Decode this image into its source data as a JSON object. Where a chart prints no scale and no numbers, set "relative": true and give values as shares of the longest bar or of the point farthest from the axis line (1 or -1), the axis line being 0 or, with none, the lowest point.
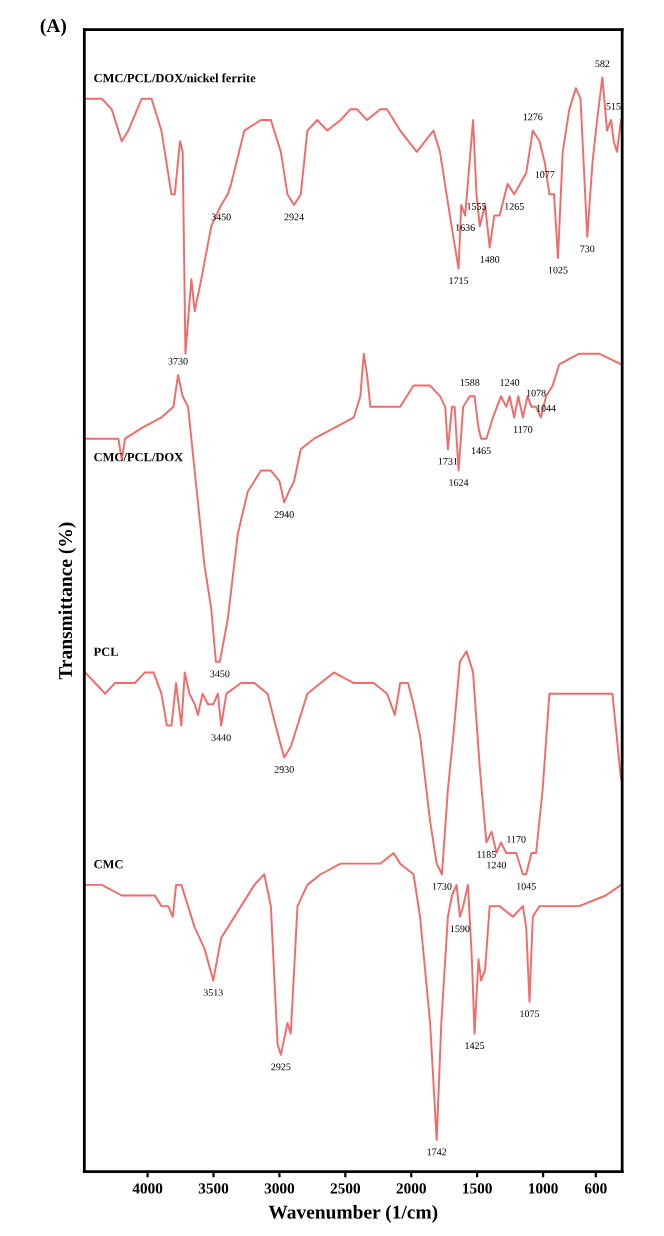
{
  "chart_data": {
    "type": "line",
    "relative": true,
    "title": "(A)",
    "xlabel": "Wavenumber (1/cm)",
    "ylabel": "Transmittance (%)",
    "xlim": [
      4480,
      400
    ],
    "xticks": [
      4000,
      3500,
      3000,
      2500,
      2000,
      1500,
      1000,
      600
    ],
    "tick_labels": "x",
    "series": [
      {
        "name": "CMC/PCL/DOX/nickel ferrite",
        "color": "#f26b6b",
        "x": [
          4473,
          4347,
          4272,
          4196,
          4146,
          4045,
          3970,
          3895,
          3819,
          3794,
          3754,
          3734,
          3713,
          3668,
          3643,
          3593,
          3517,
          3442,
          3392,
          3366,
          3266,
          3140,
          3065,
          2989,
          2939,
          2889,
          2838,
          2788,
          2713,
          2637,
          2536,
          2461,
          2411,
          2335,
          2235,
          2184,
          2084,
          1958,
          1832,
          1782,
          1732,
          1681,
          1641,
          1621,
          1591,
          1531,
          1505,
          1480,
          1440,
          1405,
          1370,
          1330,
          1269,
          1219,
          1128,
          1078,
          1027,
          987,
          952,
          917,
          887,
          851,
          801,
          751,
          716,
          665,
          625,
          590,
          550,
          515,
          484,
          464,
          439,
          409
        ],
        "values": [
          0.98,
          0.98,
          0.97,
          0.94,
          0.95,
          0.98,
          0.98,
          0.95,
          0.89,
          0.89,
          0.94,
          0.93,
          0.74,
          0.81,
          0.78,
          0.81,
          0.86,
          0.88,
          0.89,
          0.9,
          0.95,
          0.96,
          0.96,
          0.93,
          0.89,
          0.88,
          0.89,
          0.95,
          0.96,
          0.95,
          0.96,
          0.97,
          0.97,
          0.96,
          0.97,
          0.97,
          0.95,
          0.93,
          0.95,
          0.93,
          0.89,
          0.85,
          0.82,
          0.88,
          0.87,
          0.96,
          0.89,
          0.86,
          0.88,
          0.84,
          0.87,
          0.87,
          0.9,
          0.89,
          0.91,
          0.95,
          0.94,
          0.92,
          0.89,
          0.89,
          0.83,
          0.93,
          0.97,
          0.99,
          0.98,
          0.85,
          0.92,
          0.96,
          1.0,
          0.95,
          0.96,
          0.94,
          0.93,
          0.96
        ]
      },
      {
        "name": "CMC/PCL/DOX",
        "color": "#f26b6b",
        "x": [
          4473,
          4347,
          4222,
          4196,
          4171,
          4045,
          3895,
          3804,
          3769,
          3734,
          3693,
          3643,
          3568,
          3517,
          3482,
          3452,
          3392,
          3316,
          3241,
          3140,
          3065,
          2999,
          2964,
          2929,
          2889,
          2838,
          2738,
          2587,
          2436,
          2386,
          2360,
          2335,
          2310,
          2084,
          1983,
          1857,
          1782,
          1742,
          1722,
          1691,
          1671,
          1641,
          1606,
          1556,
          1520,
          1490,
          1470,
          1430,
          1380,
          1319,
          1279,
          1254,
          1219,
          1188,
          1153,
          1118,
          1088,
          1053,
          1017,
          977,
          927,
          877,
          726,
          575,
          409
        ],
        "values": [
          0.66,
          0.66,
          0.66,
          0.64,
          0.66,
          0.67,
          0.68,
          0.69,
          0.72,
          0.7,
          0.69,
          0.63,
          0.54,
          0.5,
          0.45,
          0.45,
          0.49,
          0.57,
          0.61,
          0.63,
          0.63,
          0.62,
          0.6,
          0.61,
          0.62,
          0.65,
          0.66,
          0.67,
          0.68,
          0.7,
          0.74,
          0.72,
          0.69,
          0.69,
          0.71,
          0.71,
          0.7,
          0.69,
          0.65,
          0.69,
          0.69,
          0.63,
          0.69,
          0.7,
          0.7,
          0.67,
          0.66,
          0.66,
          0.68,
          0.7,
          0.69,
          0.7,
          0.68,
          0.7,
          0.68,
          0.7,
          0.69,
          0.69,
          0.68,
          0.7,
          0.71,
          0.73,
          0.74,
          0.74,
          0.73
        ]
      },
      {
        "name": "PCL",
        "color": "#f26b6b",
        "x": [
          4473,
          4398,
          4322,
          4247,
          4096,
          4020,
          3955,
          3895,
          3854,
          3819,
          3784,
          3744,
          3718,
          3683,
          3643,
          3618,
          3583,
          3542,
          3502,
          3467,
          3442,
          3402,
          3291,
          3190,
          3090,
          3029,
          2964,
          2914,
          2863,
          2788,
          2687,
          2587,
          2436,
          2285,
          2184,
          2124,
          2084,
          2024,
          1983,
          1933,
          1857,
          1807,
          1767,
          1722,
          1681,
          1631,
          1581,
          1531,
          1480,
          1430,
          1390,
          1354,
          1319,
          1279,
          1229,
          1204,
          1153,
          1128,
          1088,
          1053,
          1003,
          952,
          877,
          726,
          525,
          474,
          409
        ],
        "values": [
          0.44,
          0.43,
          0.42,
          0.43,
          0.43,
          0.44,
          0.44,
          0.42,
          0.39,
          0.39,
          0.43,
          0.39,
          0.44,
          0.42,
          0.41,
          0.4,
          0.42,
          0.41,
          0.41,
          0.42,
          0.39,
          0.42,
          0.43,
          0.43,
          0.42,
          0.39,
          0.36,
          0.37,
          0.39,
          0.42,
          0.43,
          0.44,
          0.43,
          0.43,
          0.42,
          0.4,
          0.43,
          0.43,
          0.41,
          0.38,
          0.3,
          0.26,
          0.25,
          0.33,
          0.38,
          0.45,
          0.46,
          0.44,
          0.35,
          0.28,
          0.29,
          0.27,
          0.28,
          0.27,
          0.27,
          0.27,
          0.25,
          0.25,
          0.27,
          0.27,
          0.33,
          0.42,
          0.42,
          0.42,
          0.42,
          0.42,
          0.34
        ]
      },
      {
        "name": "CMC",
        "color": "#f26b6b",
        "x": [
          4473,
          4347,
          4196,
          4045,
          3945,
          3895,
          3844,
          3809,
          3784,
          3744,
          3693,
          3643,
          3568,
          3502,
          3442,
          3291,
          3190,
          3115,
          3065,
          3014,
          2989,
          2939,
          2914,
          2863,
          2788,
          2687,
          2536,
          2386,
          2235,
          2134,
          2084,
          1983,
          1933,
          1857,
          1807,
          1772,
          1722,
          1691,
          1656,
          1631,
          1606,
          1570,
          1540,
          1520,
          1490,
          1470,
          1440,
          1405,
          1330,
          1229,
          1153,
          1128,
          1103,
          1078,
          1027,
          927,
          726,
          525,
          409
        ],
        "values": [
          0.24,
          0.24,
          0.23,
          0.23,
          0.23,
          0.22,
          0.22,
          0.21,
          0.24,
          0.24,
          0.22,
          0.2,
          0.18,
          0.15,
          0.19,
          0.22,
          0.24,
          0.25,
          0.22,
          0.09,
          0.08,
          0.11,
          0.1,
          0.22,
          0.24,
          0.25,
          0.26,
          0.26,
          0.26,
          0.27,
          0.26,
          0.25,
          0.21,
          0.11,
          0.0,
          0.11,
          0.21,
          0.23,
          0.24,
          0.21,
          0.22,
          0.24,
          0.17,
          0.1,
          0.17,
          0.15,
          0.16,
          0.22,
          0.22,
          0.21,
          0.22,
          0.2,
          0.13,
          0.21,
          0.22,
          0.22,
          0.22,
          0.23,
          0.24
        ]
      }
    ],
    "annotations": [
      {
        "text": "3450",
        "x": 3442,
        "y": 0.88
      },
      {
        "text": "2924",
        "x": 2889,
        "y": 0.88
      },
      {
        "text": "1715",
        "x": 1641,
        "y": 0.82
      },
      {
        "text": "1636",
        "x": 1591,
        "y": 0.87
      },
      {
        "text": "1555",
        "x": 1505,
        "y": 0.89
      },
      {
        "text": "1480",
        "x": 1405,
        "y": 0.84
      },
      {
        "text": "1265",
        "x": 1219,
        "y": 0.89
      },
      {
        "text": "1276",
        "x": 1078,
        "y": 0.95
      },
      {
        "text": "1077",
        "x": 987,
        "y": 0.92
      },
      {
        "text": "1025",
        "x": 887,
        "y": 0.83
      },
      {
        "text": "730",
        "x": 665,
        "y": 0.85
      },
      {
        "text": "582",
        "x": 550,
        "y": 1.0
      },
      {
        "text": "515",
        "x": 409,
        "y": 0.96
      },
      {
        "text": "3730",
        "x": 3769,
        "y": 0.72
      },
      {
        "text": "2940",
        "x": 2964,
        "y": 0.6
      },
      {
        "text": "1731",
        "x": 1722,
        "y": 0.65
      },
      {
        "text": "1624",
        "x": 1641,
        "y": 0.63
      },
      {
        "text": "1588",
        "x": 1556,
        "y": 0.7
      },
      {
        "text": "1465",
        "x": 1470,
        "y": 0.66
      },
      {
        "text": "1240",
        "x": 1254,
        "y": 0.7
      },
      {
        "text": "1170",
        "x": 1153,
        "y": 0.68
      },
      {
        "text": "1078",
        "x": 1053,
        "y": 0.69
      },
      {
        "text": "1044",
        "x": 977,
        "y": 0.7
      },
      {
        "text": "3450",
        "x": 3452,
        "y": 0.45
      },
      {
        "text": "3440",
        "x": 3442,
        "y": 0.39
      },
      {
        "text": "2930",
        "x": 2964,
        "y": 0.36
      },
      {
        "text": "1730",
        "x": 1767,
        "y": 0.25
      },
      {
        "text": "1185",
        "x": 1430,
        "y": 0.28
      },
      {
        "text": "1240",
        "x": 1354,
        "y": 0.27
      },
      {
        "text": "1170",
        "x": 1204,
        "y": 0.27
      },
      {
        "text": "1045",
        "x": 1128,
        "y": 0.25
      },
      {
        "text": "3513",
        "x": 3502,
        "y": 0.15
      },
      {
        "text": "2925",
        "x": 2989,
        "y": 0.08
      },
      {
        "text": "1742",
        "x": 1807,
        "y": 0.0
      },
      {
        "text": "1590",
        "x": 1631,
        "y": 0.21
      },
      {
        "text": "1425",
        "x": 1520,
        "y": 0.1
      },
      {
        "text": "1075",
        "x": 1103,
        "y": 0.13
      }
    ]
  }
}
